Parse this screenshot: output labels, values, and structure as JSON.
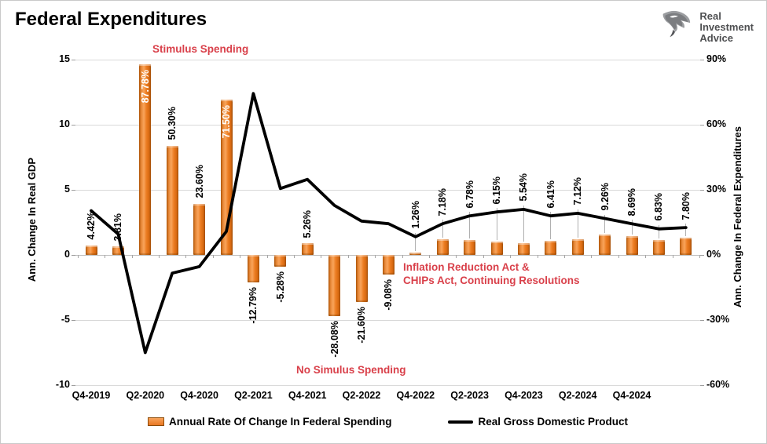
{
  "page": {
    "title": "Federal Expenditures"
  },
  "logo": {
    "line1": "Real",
    "line2": "Investment",
    "line3": "Advice"
  },
  "chart_data": {
    "type": "bar+line",
    "title": "Federal Expenditures",
    "categories": [
      "Q4-2019",
      "Q1-2020",
      "Q2-2020",
      "Q3-2020",
      "Q4-2020",
      "Q1-2021",
      "Q2-2021",
      "Q3-2021",
      "Q4-2021",
      "Q1-2022",
      "Q2-2022",
      "Q3-2022",
      "Q4-2022",
      "Q1-2023",
      "Q2-2023",
      "Q3-2023",
      "Q4-2023",
      "Q1-2024",
      "Q2-2024",
      "Q3-2024",
      "Q4-2024",
      "Q1-2025",
      "Q2-2025"
    ],
    "x_tick_labels": [
      "Q4-2019",
      "Q2-2020",
      "Q4-2020",
      "Q2-2021",
      "Q4-2021",
      "Q2-2022",
      "Q4-2022",
      "Q2-2023",
      "Q4-2023",
      "Q2-2024",
      "Q4-2024"
    ],
    "series": [
      {
        "name": "Annual Rate Of Change In Federal Spending",
        "type": "bar",
        "axis": "right",
        "unit": "%",
        "color": "#ED7D31",
        "values": [
          4.42,
          3.81,
          87.78,
          50.3,
          23.6,
          71.5,
          -12.79,
          -5.28,
          5.26,
          -28.08,
          -21.6,
          -9.08,
          1.26,
          7.18,
          6.78,
          6.15,
          5.54,
          6.41,
          7.12,
          9.26,
          8.69,
          6.83,
          7.8
        ],
        "point_labels": [
          "4.42%",
          "3.81%",
          "87.78%",
          "50.30%",
          "23.60%",
          "71.50%",
          "-12.79%",
          "-5.28%",
          "5.26%",
          "-28.08%",
          "-21.60%",
          "-9.08%",
          "1.26%",
          "7.18%",
          "6.78%",
          "6.15%",
          "5.54%",
          "6.41%",
          "7.12%",
          "9.26%",
          "8.69%",
          "6.83%",
          "7.80%"
        ],
        "inside_label_indices": [
          2,
          5
        ],
        "leader_line_from_index": 12
      },
      {
        "name": "Real Gross Domestic Product",
        "type": "line",
        "axis": "left",
        "color": "#000000",
        "values": [
          3.4,
          1.6,
          -7.5,
          -1.4,
          -0.9,
          1.8,
          12.4,
          5.1,
          5.8,
          3.8,
          2.6,
          2.4,
          1.4,
          2.4,
          3.0,
          3.3,
          3.5,
          3.0,
          3.2,
          2.8,
          2.4,
          2.0,
          2.1
        ]
      }
    ],
    "left_axis": {
      "title": "Ann. Change In Real GDP",
      "tick_labels": [
        "15",
        "10",
        "5",
        "0",
        "-5",
        "-10"
      ],
      "tick_values": [
        15,
        10,
        5,
        0,
        -5,
        -10
      ],
      "range": [
        -10,
        15
      ]
    },
    "right_axis": {
      "title": "Ann. Change In Federal Expenditures",
      "tick_labels": [
        "90%",
        "60%",
        "30%",
        "0%",
        "-30%",
        "-60%"
      ],
      "tick_values": [
        90,
        60,
        30,
        0,
        -30,
        -60
      ],
      "range": [
        -60,
        90
      ]
    },
    "annotations": {
      "color": "#D9404A",
      "stimulus": "Stimulus Spending",
      "ira_chips": "Inflation Reduction Act &\nCHIPs Act, Continuing Resolutions",
      "no_stimulus": "No Simulus Spending"
    },
    "grid": "horizontal",
    "legend_position": "bottom"
  }
}
